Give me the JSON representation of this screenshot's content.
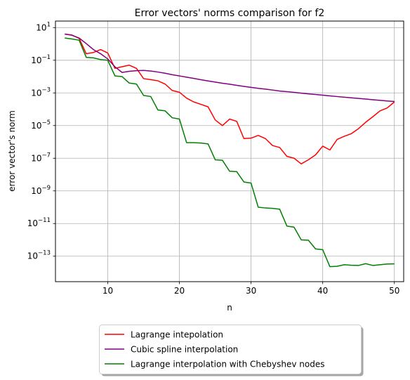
{
  "chart_data": {
    "type": "line",
    "title": "Error vectors' norms comparison for f2",
    "xlabel": "n",
    "ylabel": "error vector's norm",
    "xlim": [
      2.7,
      51.3
    ],
    "ylim_log10": [
      -14.56,
      1.4
    ],
    "y_scale": "log",
    "grid": true,
    "legend_position": "bottom-center, below axes",
    "x_ticks": [
      10,
      20,
      30,
      40,
      50
    ],
    "x_tick_labels": [
      "10",
      "20",
      "30",
      "40",
      "50"
    ],
    "y_ticks_exp": [
      1,
      -1,
      -3,
      -5,
      -7,
      -9,
      -11,
      -13
    ],
    "y_tick_labels": [
      {
        "base": "10",
        "exp": "1"
      },
      {
        "base": "10",
        "exp": "−1"
      },
      {
        "base": "10",
        "exp": "−3"
      },
      {
        "base": "10",
        "exp": "−5"
      },
      {
        "base": "10",
        "exp": "−7"
      },
      {
        "base": "10",
        "exp": "−9"
      },
      {
        "base": "10",
        "exp": "−11"
      },
      {
        "base": "10",
        "exp": "−13"
      }
    ],
    "x": [
      4,
      5,
      6,
      7,
      8,
      9,
      10,
      11,
      12,
      13,
      14,
      15,
      16,
      17,
      18,
      19,
      20,
      21,
      22,
      23,
      24,
      25,
      26,
      27,
      28,
      29,
      30,
      31,
      32,
      33,
      34,
      35,
      36,
      37,
      38,
      39,
      40,
      41,
      42,
      43,
      44,
      45,
      46,
      47,
      48,
      49,
      50
    ],
    "series": [
      {
        "name": "Lagrange intepolation",
        "color": "#ff0000",
        "values": [
          4,
          3.5,
          2.2,
          0.25,
          0.3,
          0.45,
          0.28,
          0.032,
          0.04,
          0.05,
          0.032,
          0.0075,
          0.0065,
          0.0055,
          0.0035,
          0.0014,
          0.0011,
          0.00048,
          0.00028,
          0.0002,
          0.00014,
          2.2e-05,
          1e-05,
          2.5e-05,
          1.8e-05,
          1.6e-06,
          1.7e-06,
          2.5e-06,
          1.6e-06,
          6e-07,
          4.5e-07,
          1.3e-07,
          1e-07,
          4.5e-08,
          8e-08,
          1.6e-07,
          5.5e-07,
          3.2e-07,
          1.4e-06,
          2.2e-06,
          3.2e-06,
          6.5e-06,
          1.6e-05,
          3.5e-05,
          8e-05,
          0.00012,
          0.00028
        ]
      },
      {
        "name": "Cubic spline interpolation",
        "color": "#800080",
        "values": [
          4,
          3.4,
          2.3,
          1.05,
          0.45,
          0.25,
          0.12,
          0.04,
          0.018,
          0.021,
          0.023,
          0.024,
          0.022,
          0.019,
          0.016,
          0.013,
          0.011,
          0.0092,
          0.0077,
          0.0064,
          0.0054,
          0.0046,
          0.0039,
          0.0034,
          0.0029,
          0.0025,
          0.0022,
          0.0019,
          0.0017,
          0.0015,
          0.0013,
          0.0012,
          0.00108,
          0.00097,
          0.00088,
          0.0008,
          0.00073,
          0.00066,
          0.0006,
          0.00055,
          0.0005,
          0.00046,
          0.00042,
          0.00038,
          0.00035,
          0.00032,
          0.0003
        ]
      },
      {
        "name": "Lagrange interpolation with Chebyshev nodes",
        "color": "#008000",
        "values": [
          2.3,
          2,
          1.7,
          0.15,
          0.14,
          0.11,
          0.1,
          0.011,
          0.01,
          0.004,
          0.0035,
          0.0007,
          0.0006,
          9e-05,
          8e-05,
          3e-05,
          2.5e-05,
          9e-07,
          9e-07,
          8.5e-07,
          7.5e-07,
          8e-08,
          7.5e-08,
          1.6e-08,
          1.5e-08,
          3.5e-09,
          3e-09,
          1e-10,
          9e-11,
          8.5e-11,
          7.5e-11,
          7e-12,
          6e-12,
          1e-12,
          9.5e-13,
          2.8e-13,
          2.5e-13,
          2.3e-14,
          2.4e-14,
          3e-14,
          2.8e-14,
          2.7e-14,
          3.5e-14,
          2.7e-14,
          3e-14,
          3.3e-14,
          3.4e-14
        ]
      }
    ]
  }
}
